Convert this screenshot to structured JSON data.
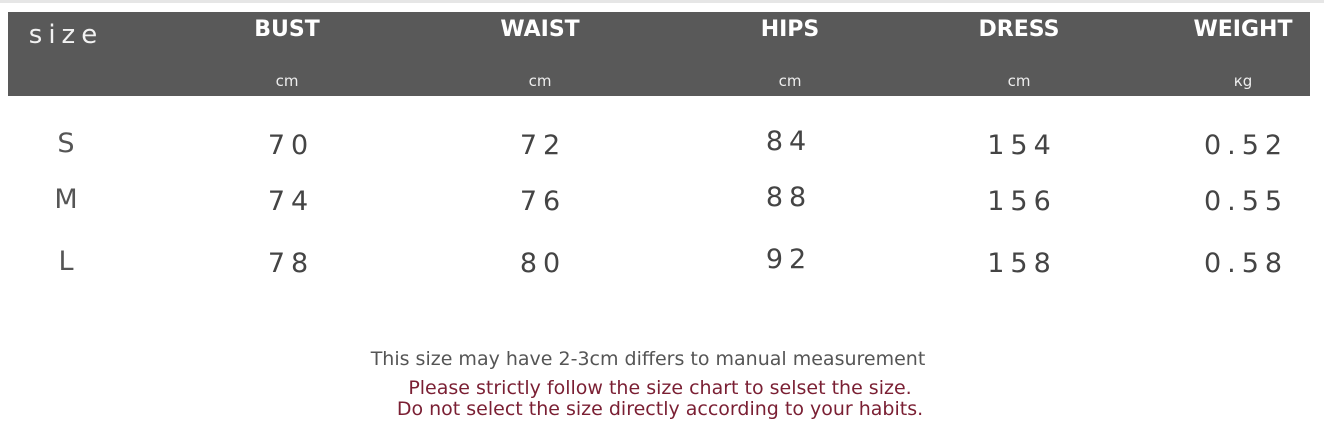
{
  "table": {
    "size_header": "size",
    "columns": [
      {
        "name": "BUST",
        "unit": "cm"
      },
      {
        "name": "WAIST",
        "unit": "cm"
      },
      {
        "name": "HIPS",
        "unit": "cm"
      },
      {
        "name": "DRESS",
        "unit": "cm"
      },
      {
        "name": "WEIGHT",
        "unit": "кg"
      }
    ],
    "rows": [
      {
        "size": "S",
        "values": [
          "70",
          "72",
          "84",
          "154",
          "0.52"
        ]
      },
      {
        "size": "M",
        "values": [
          "74",
          "76",
          "88",
          "156",
          "0.55"
        ]
      },
      {
        "size": "L",
        "values": [
          "78",
          "80",
          "92",
          "158",
          "0.58"
        ]
      }
    ]
  },
  "notes": {
    "line1": "This size may have 2-3cm differs to manual measurement",
    "line2": "Please strictly follow the size chart to selset the size.",
    "line3": "Do not select the size directly according to your habits."
  },
  "colors": {
    "header_bg": "#595959",
    "warning_text": "#7a1f33"
  }
}
